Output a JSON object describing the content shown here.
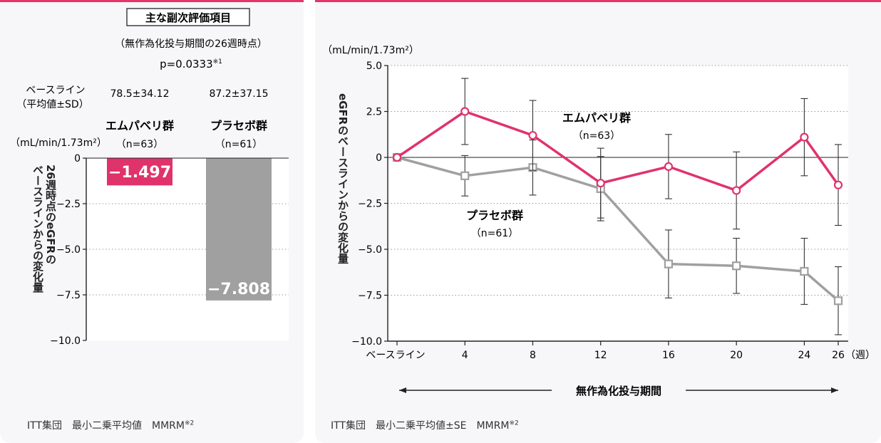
{
  "left_panel": {
    "title": "主な副次評価項目",
    "subtitle": "（無作為化投与期間の26週時点）",
    "pvalue": "p=0.0333",
    "pvalue_note": "※1",
    "baseline_label_1": "ベースライン",
    "baseline_label_2": "（平均値±SD）",
    "unit": "（mL/min/1.73m²）",
    "y_axis_label_line1": "26週時点のeGFRの",
    "y_axis_label_line2": "ベースラインからの変化量",
    "footer": "ITT集団　最小二乗平均値　MMRM",
    "footer_note": "※2"
  },
  "right_panel": {
    "unit": "（mL/min/1.73m²）",
    "y_axis_label": "eGFRのベースラインからの変化量",
    "period_label": "無作為化投与期間",
    "week_unit": "（週）",
    "footer": "ITT集団　最小二乗平均値±SE　MMRM",
    "footer_note": "※2"
  },
  "colors": {
    "treatment": "#e0336b",
    "placebo": "#a0a0a0",
    "accent": "#e6336a"
  },
  "chart_data": [
    {
      "type": "bar",
      "categories": [
        "エムパベリ群",
        "プラセボ群"
      ],
      "n_labels": [
        "（n=63）",
        "（n=61）"
      ],
      "baselines": [
        "78.5±34.12",
        "87.2±37.15"
      ],
      "values": [
        -1.497,
        -7.808
      ],
      "value_labels": [
        "−1.497",
        "−7.808"
      ],
      "ylim": [
        -10.0,
        0
      ],
      "yticks": [
        0,
        -2.5,
        -5.0,
        -7.5,
        -10.0
      ],
      "ytick_labels": [
        "0",
        "−2.5",
        "−5.0",
        "−7.5",
        "−10.0"
      ],
      "grid": true
    },
    {
      "type": "line",
      "x": [
        0,
        4,
        8,
        12,
        16,
        20,
        24,
        26
      ],
      "xtick_labels": [
        "ベースライン",
        "4",
        "8",
        "12",
        "16",
        "20",
        "24",
        "26"
      ],
      "ylim": [
        -10.0,
        5.0
      ],
      "yticks": [
        5.0,
        2.5,
        0,
        -2.5,
        -5.0,
        -7.5,
        -10.0
      ],
      "ytick_labels": [
        "5.0",
        "2.5",
        "0",
        "−2.5",
        "−5.0",
        "−7.5",
        "−10.0"
      ],
      "grid": true,
      "series": [
        {
          "name": "エムパベリ群",
          "n_label": "（n=63）",
          "values": [
            0,
            2.5,
            1.2,
            -1.4,
            -0.5,
            -1.8,
            1.1,
            -1.5
          ],
          "errors": [
            0,
            1.8,
            1.9,
            1.9,
            1.75,
            2.1,
            2.1,
            2.2
          ]
        },
        {
          "name": "プラセボ群",
          "n_label": "（n=61）",
          "values": [
            0,
            -1.0,
            -0.55,
            -1.7,
            -5.8,
            -5.9,
            -6.2,
            -7.8
          ],
          "errors": [
            0,
            1.1,
            1.5,
            1.75,
            1.85,
            1.5,
            1.8,
            1.85
          ]
        }
      ]
    }
  ]
}
